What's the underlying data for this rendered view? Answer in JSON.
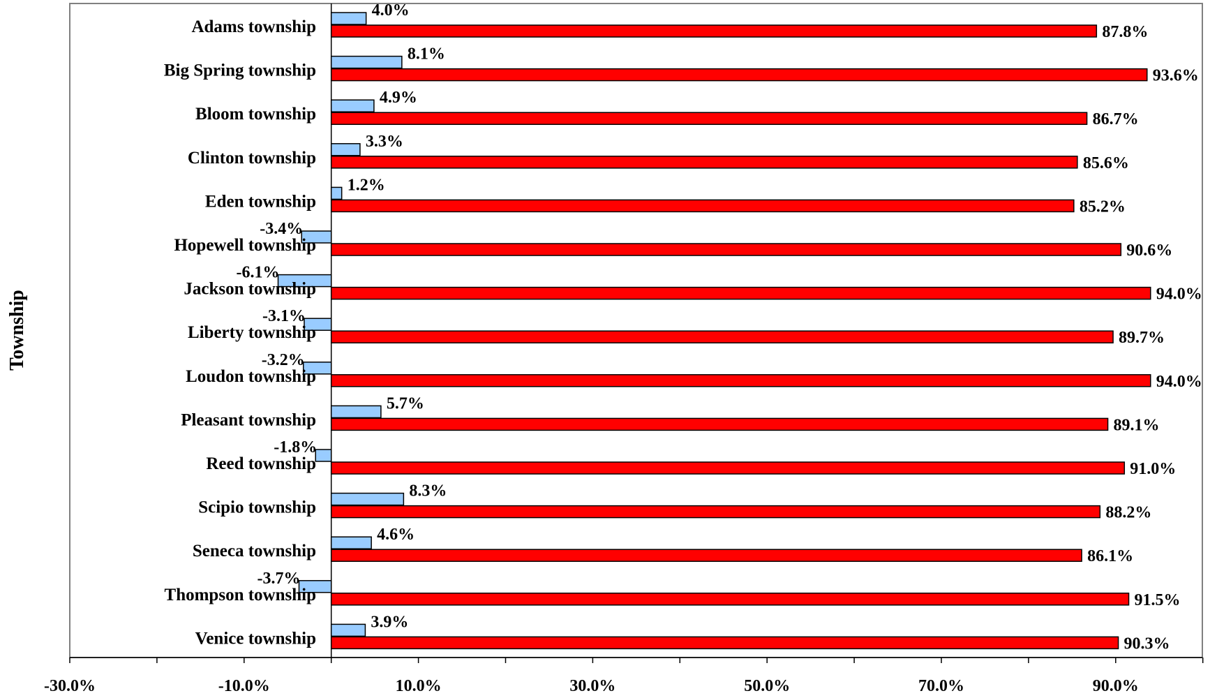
{
  "chart_data": {
    "type": "bar",
    "orientation": "horizontal",
    "categories": [
      "Adams township",
      "Big Spring township",
      "Bloom township",
      "Clinton township",
      "Eden township",
      "Hopewell township",
      "Jackson township",
      "Liberty township",
      "Loudon township",
      "Pleasant township",
      "Reed township",
      "Scipio township",
      "Seneca township",
      "Thompson township",
      "Venice township"
    ],
    "series": [
      {
        "color": "#99CCFF",
        "values": [
          4.0,
          8.1,
          4.9,
          3.3,
          1.2,
          -3.4,
          -6.1,
          -3.1,
          -3.2,
          5.7,
          -1.8,
          8.3,
          4.6,
          -3.7,
          3.9
        ],
        "labels": [
          "4.0%",
          "8.1%",
          "4.9%",
          "3.3%",
          "1.2%",
          "-3.4%",
          "-6.1%",
          "-3.1%",
          "-3.2%",
          "5.7%",
          "-1.8%",
          "8.3%",
          "4.6%",
          "-3.7%",
          "3.9%"
        ]
      },
      {
        "color": "#FF0000",
        "values": [
          87.8,
          93.6,
          86.7,
          85.6,
          85.2,
          90.6,
          94.0,
          89.7,
          94.0,
          89.1,
          91.0,
          88.2,
          86.1,
          91.5,
          90.3
        ],
        "labels": [
          "87.8%",
          "93.6%",
          "86.7%",
          "85.6%",
          "85.2%",
          "90.6%",
          "94.0%",
          "89.7%",
          "94.0%",
          "89.1%",
          "91.0%",
          "88.2%",
          "86.1%",
          "91.5%",
          "90.3%"
        ]
      }
    ],
    "xlim": [
      -30,
      100
    ],
    "x_ticks": [
      -30,
      -10,
      10,
      30,
      50,
      70,
      90
    ],
    "x_tick_labels": [
      "-30.0%",
      "-10.0%",
      "10.0%",
      "30.0%",
      "50.0%",
      "70.0%",
      "90.0%"
    ],
    "ylabel": "Township",
    "xlabel": "",
    "title": "",
    "grid": false,
    "legend": "none"
  }
}
